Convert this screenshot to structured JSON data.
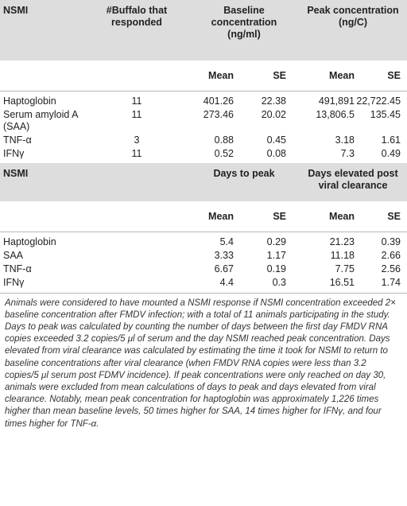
{
  "table1": {
    "header": {
      "col1": "NSMI",
      "col2": [
        "#Buffalo that",
        "responded"
      ],
      "col3": [
        "Baseline",
        "concentration",
        "(ng/ml)"
      ],
      "col4": [
        "Peak concentration",
        "(ng/C)"
      ]
    },
    "subheader": {
      "mean": "Mean",
      "se": "SE",
      "mean2": "Mean",
      "se2": "SE"
    },
    "rows": [
      {
        "name": [
          "Haptoglobin"
        ],
        "resp": "11",
        "m1": "401.26",
        "s1": "22.38",
        "m2": "491,891",
        "s2": "22,722.45"
      },
      {
        "name": [
          "Serum amyloid A",
          "(SAA)"
        ],
        "resp": "11",
        "m1": "273.46",
        "s1": "20.02",
        "m2": "13,806.5",
        "s2": "135.45"
      },
      {
        "name": [
          "TNF-α"
        ],
        "resp": "3",
        "m1": "0.88",
        "s1": "0.45",
        "m2": "3.18",
        "s2": "1.61"
      },
      {
        "name": [
          "IFNγ"
        ],
        "resp": "11",
        "m1": "0.52",
        "s1": "0.08",
        "m2": "7.3",
        "s2": "0.49"
      }
    ]
  },
  "table2": {
    "header": {
      "col1": "NSMI",
      "col3": [
        "Days to peak"
      ],
      "col4": [
        "Days elevated post",
        "viral clearance"
      ]
    },
    "subheader": {
      "mean": "Mean",
      "se": "SE",
      "mean2": "Mean",
      "se2": "SE"
    },
    "rows": [
      {
        "name": "Haptoglobin",
        "m1": "5.4",
        "s1": "0.29",
        "m2": "21.23",
        "s2": "0.39"
      },
      {
        "name": "SAA",
        "m1": "3.33",
        "s1": "1.17",
        "m2": "11.18",
        "s2": "2.66"
      },
      {
        "name": "TNF-α",
        "m1": "6.67",
        "s1": "0.19",
        "m2": "7.75",
        "s2": "2.56"
      },
      {
        "name": "IFNγ",
        "m1": "4.4",
        "s1": "0.3",
        "m2": "16.51",
        "s2": "1.74"
      }
    ]
  },
  "footnote": "Animals were considered to have mounted a NSMI response if NSMI concentration exceeded 2× baseline concentration after FMDV infection; with a total of 11 animals participating in the study. Days to peak was calculated by counting the number of days between the first day FMDV RNA copies exceeded 3.2 copies/5 μl of serum and the day NSMI reached peak concentration. Days elevated from viral clearance was calculated by estimating the time it took for NSMI to return to baseline concentrations after viral clearance (when FMDV RNA copies were less than 3.2 copies/5 μl serum post FDMV incidence). If peak concentrations were only reached on day 30, animals were excluded from mean calculations of days to peak and days elevated from viral clearance. Notably, mean peak concentration for haptoglobin was approximately 1,226 times higher than mean baseline levels, 50 times higher for SAA, 14 times higher for IFNγ, and four times higher for TNF-α."
}
